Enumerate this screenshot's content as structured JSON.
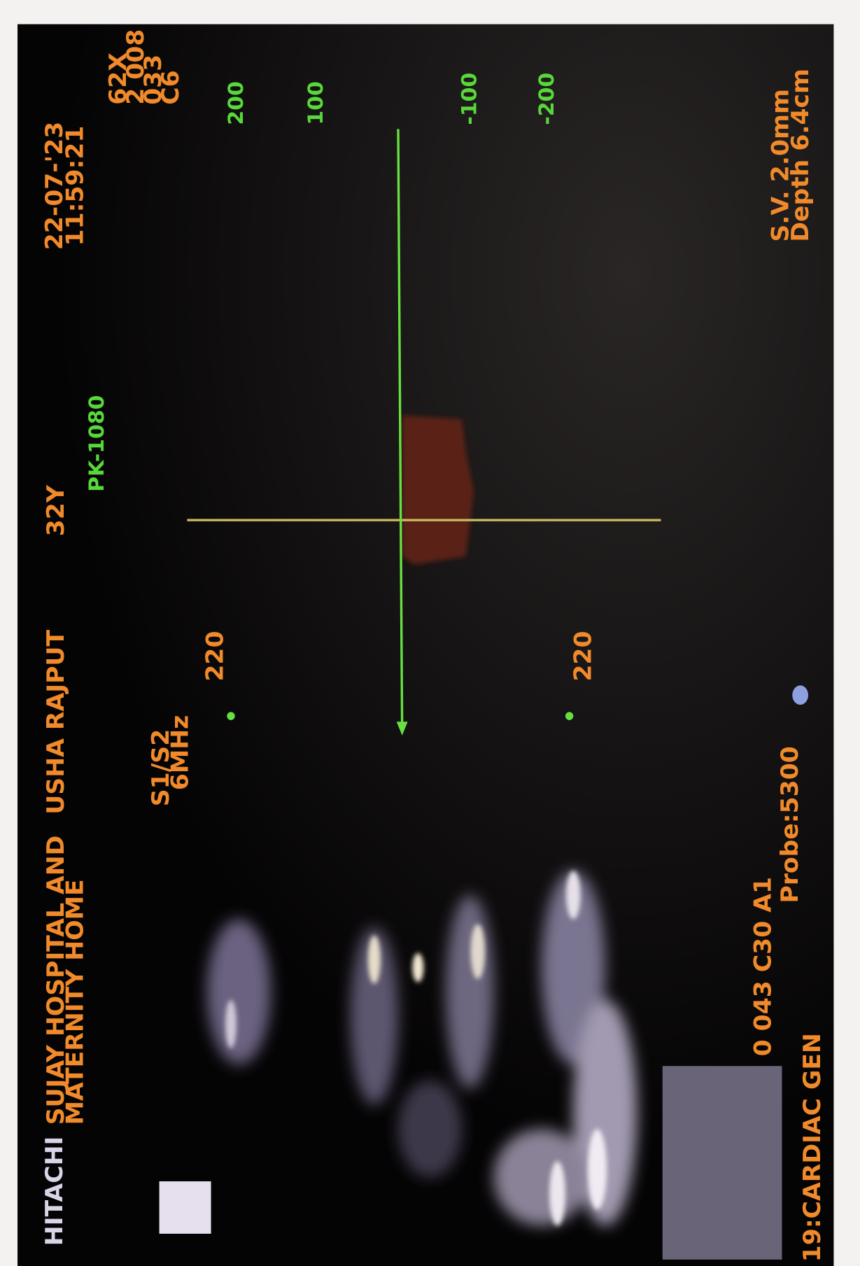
{
  "header": {
    "brand": "HITACHI",
    "hospital": [
      "SUJAY HOSPITAL AND",
      "MATERNITY HOME"
    ],
    "patient": "USHA RAJPUT",
    "age": "32Y",
    "date": "22-07-'23",
    "time": "11:59:21"
  },
  "doppler": {
    "prf": "PK-1080",
    "frequency": [
      "S1/S2",
      "6MHz"
    ],
    "gate_depth": [
      "220",
      "220"
    ],
    "scale": [
      "200",
      "100",
      "-100",
      "-200"
    ],
    "settings": [
      "62X",
      "2 008",
      "033",
      "C6"
    ]
  },
  "footer": {
    "params": "0 043 C30 A1",
    "probe": "Probe:5300",
    "preset": "19:CARDIAC GEN",
    "sample_volume": "S.V. 2.0mm",
    "depth": "Depth 6.4cm"
  }
}
